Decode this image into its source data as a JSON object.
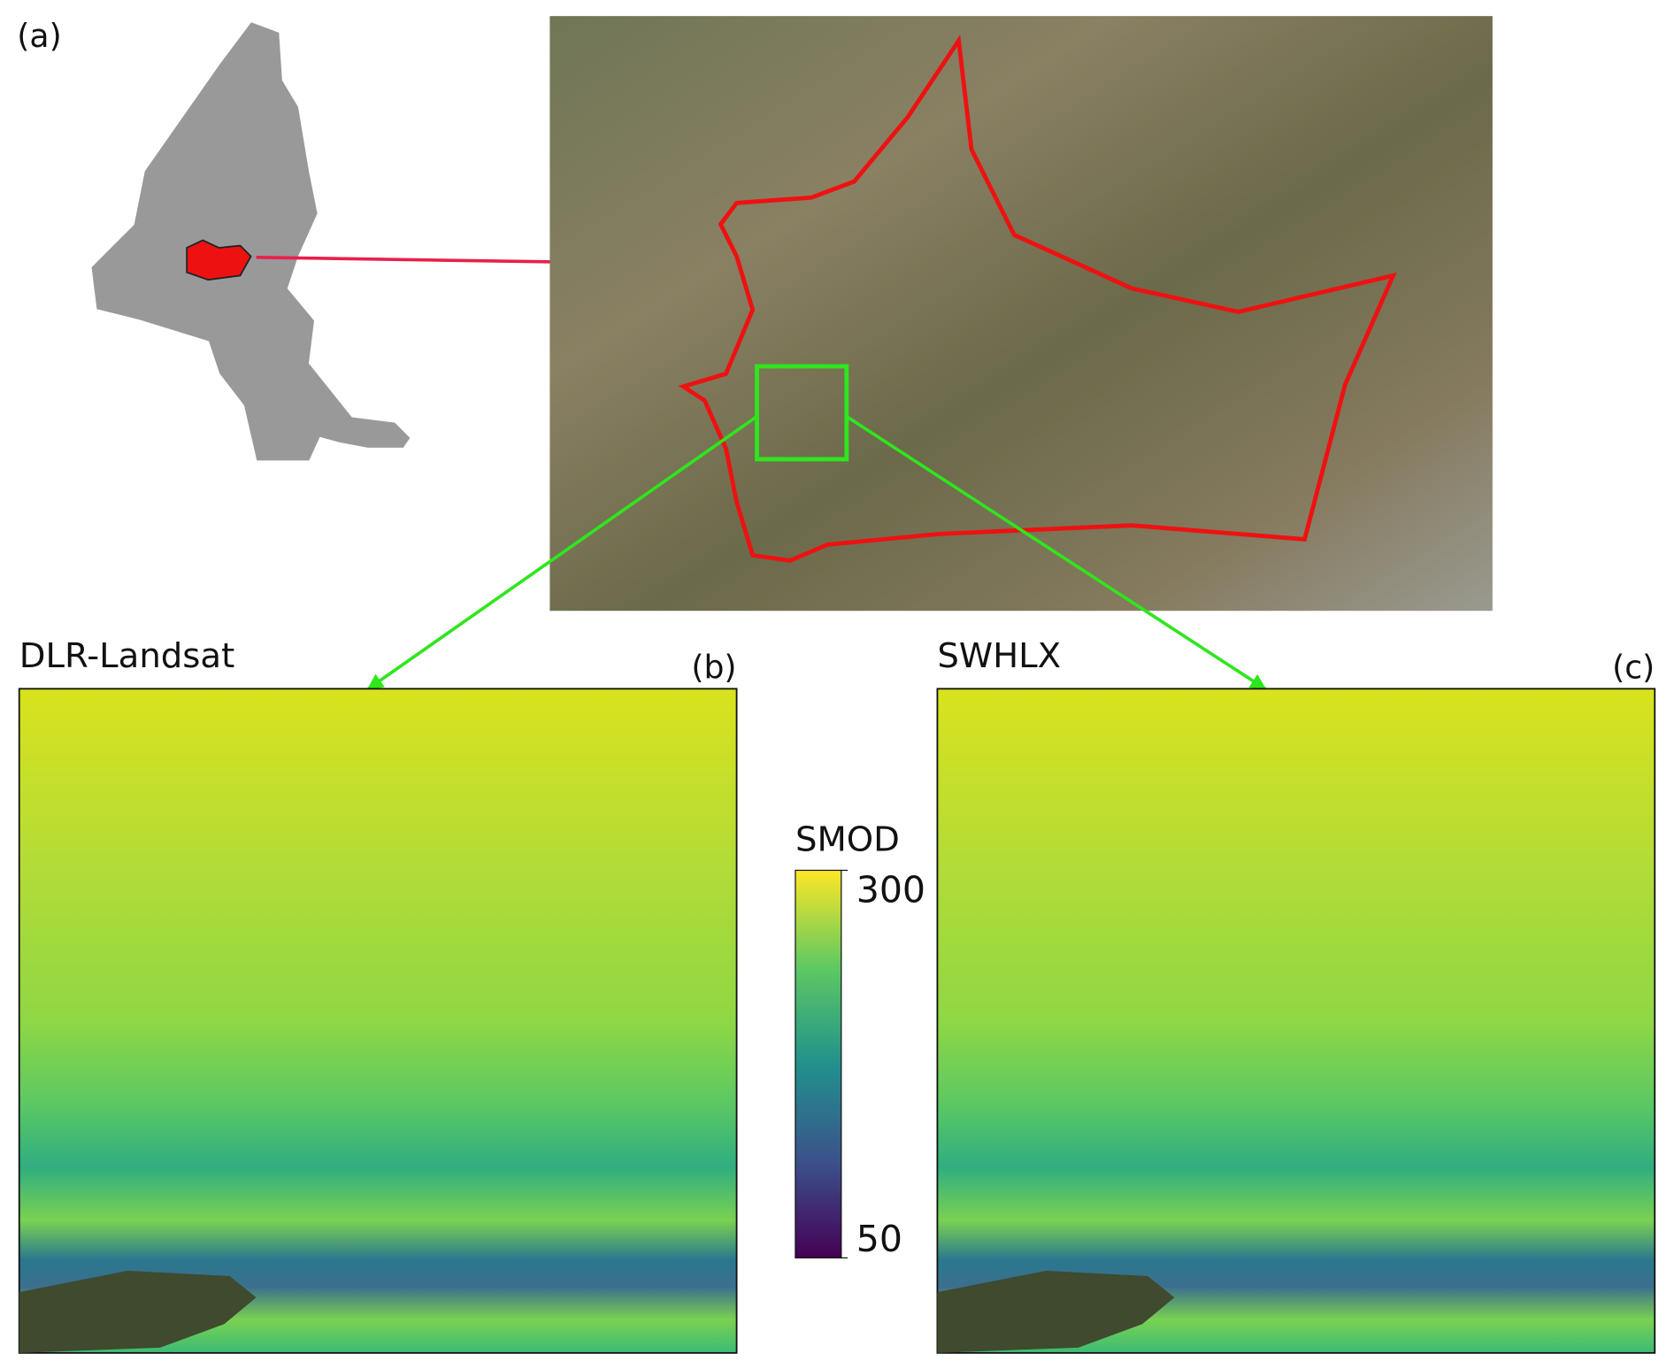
{
  "panel_a": {
    "label": "(a)"
  },
  "panel_b": {
    "title": "DLR-Landsat",
    "label": "(b)"
  },
  "panel_c": {
    "title": "SWHLX",
    "label": "(c)"
  },
  "colorbar": {
    "title": "SMOD",
    "range": [
      50,
      300
    ],
    "ticks": [
      50,
      300
    ]
  }
}
